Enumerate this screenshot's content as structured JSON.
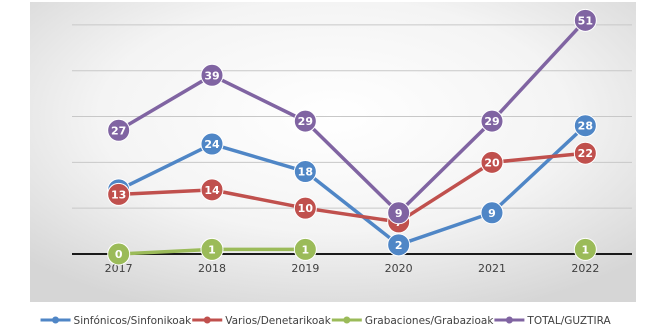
{
  "chart_data": {
    "type": "line",
    "title": "",
    "xlabel": "",
    "ylabel": "",
    "x": [
      "2017",
      "2018",
      "2019",
      "2020",
      "2021",
      "2022"
    ],
    "ylim": [
      0,
      55
    ],
    "grid": true,
    "legend_position": "bottom",
    "series": [
      {
        "name": "Sinfónicos/Sinfonikoak",
        "color": "#4f86c6",
        "values": [
          14,
          24,
          18,
          2,
          9,
          28
        ]
      },
      {
        "name": "Varios/Denetarikoak",
        "color": "#c0504d",
        "values": [
          13,
          14,
          10,
          7,
          20,
          22
        ]
      },
      {
        "name": "Grabaciones/Grabazioak",
        "color": "#9bbb59",
        "values": [
          0,
          1,
          1,
          null,
          null,
          1
        ]
      },
      {
        "name": "TOTAL/GUZTIRA",
        "color": "#8064a2",
        "values": [
          27,
          39,
          29,
          9,
          29,
          51
        ]
      }
    ]
  }
}
